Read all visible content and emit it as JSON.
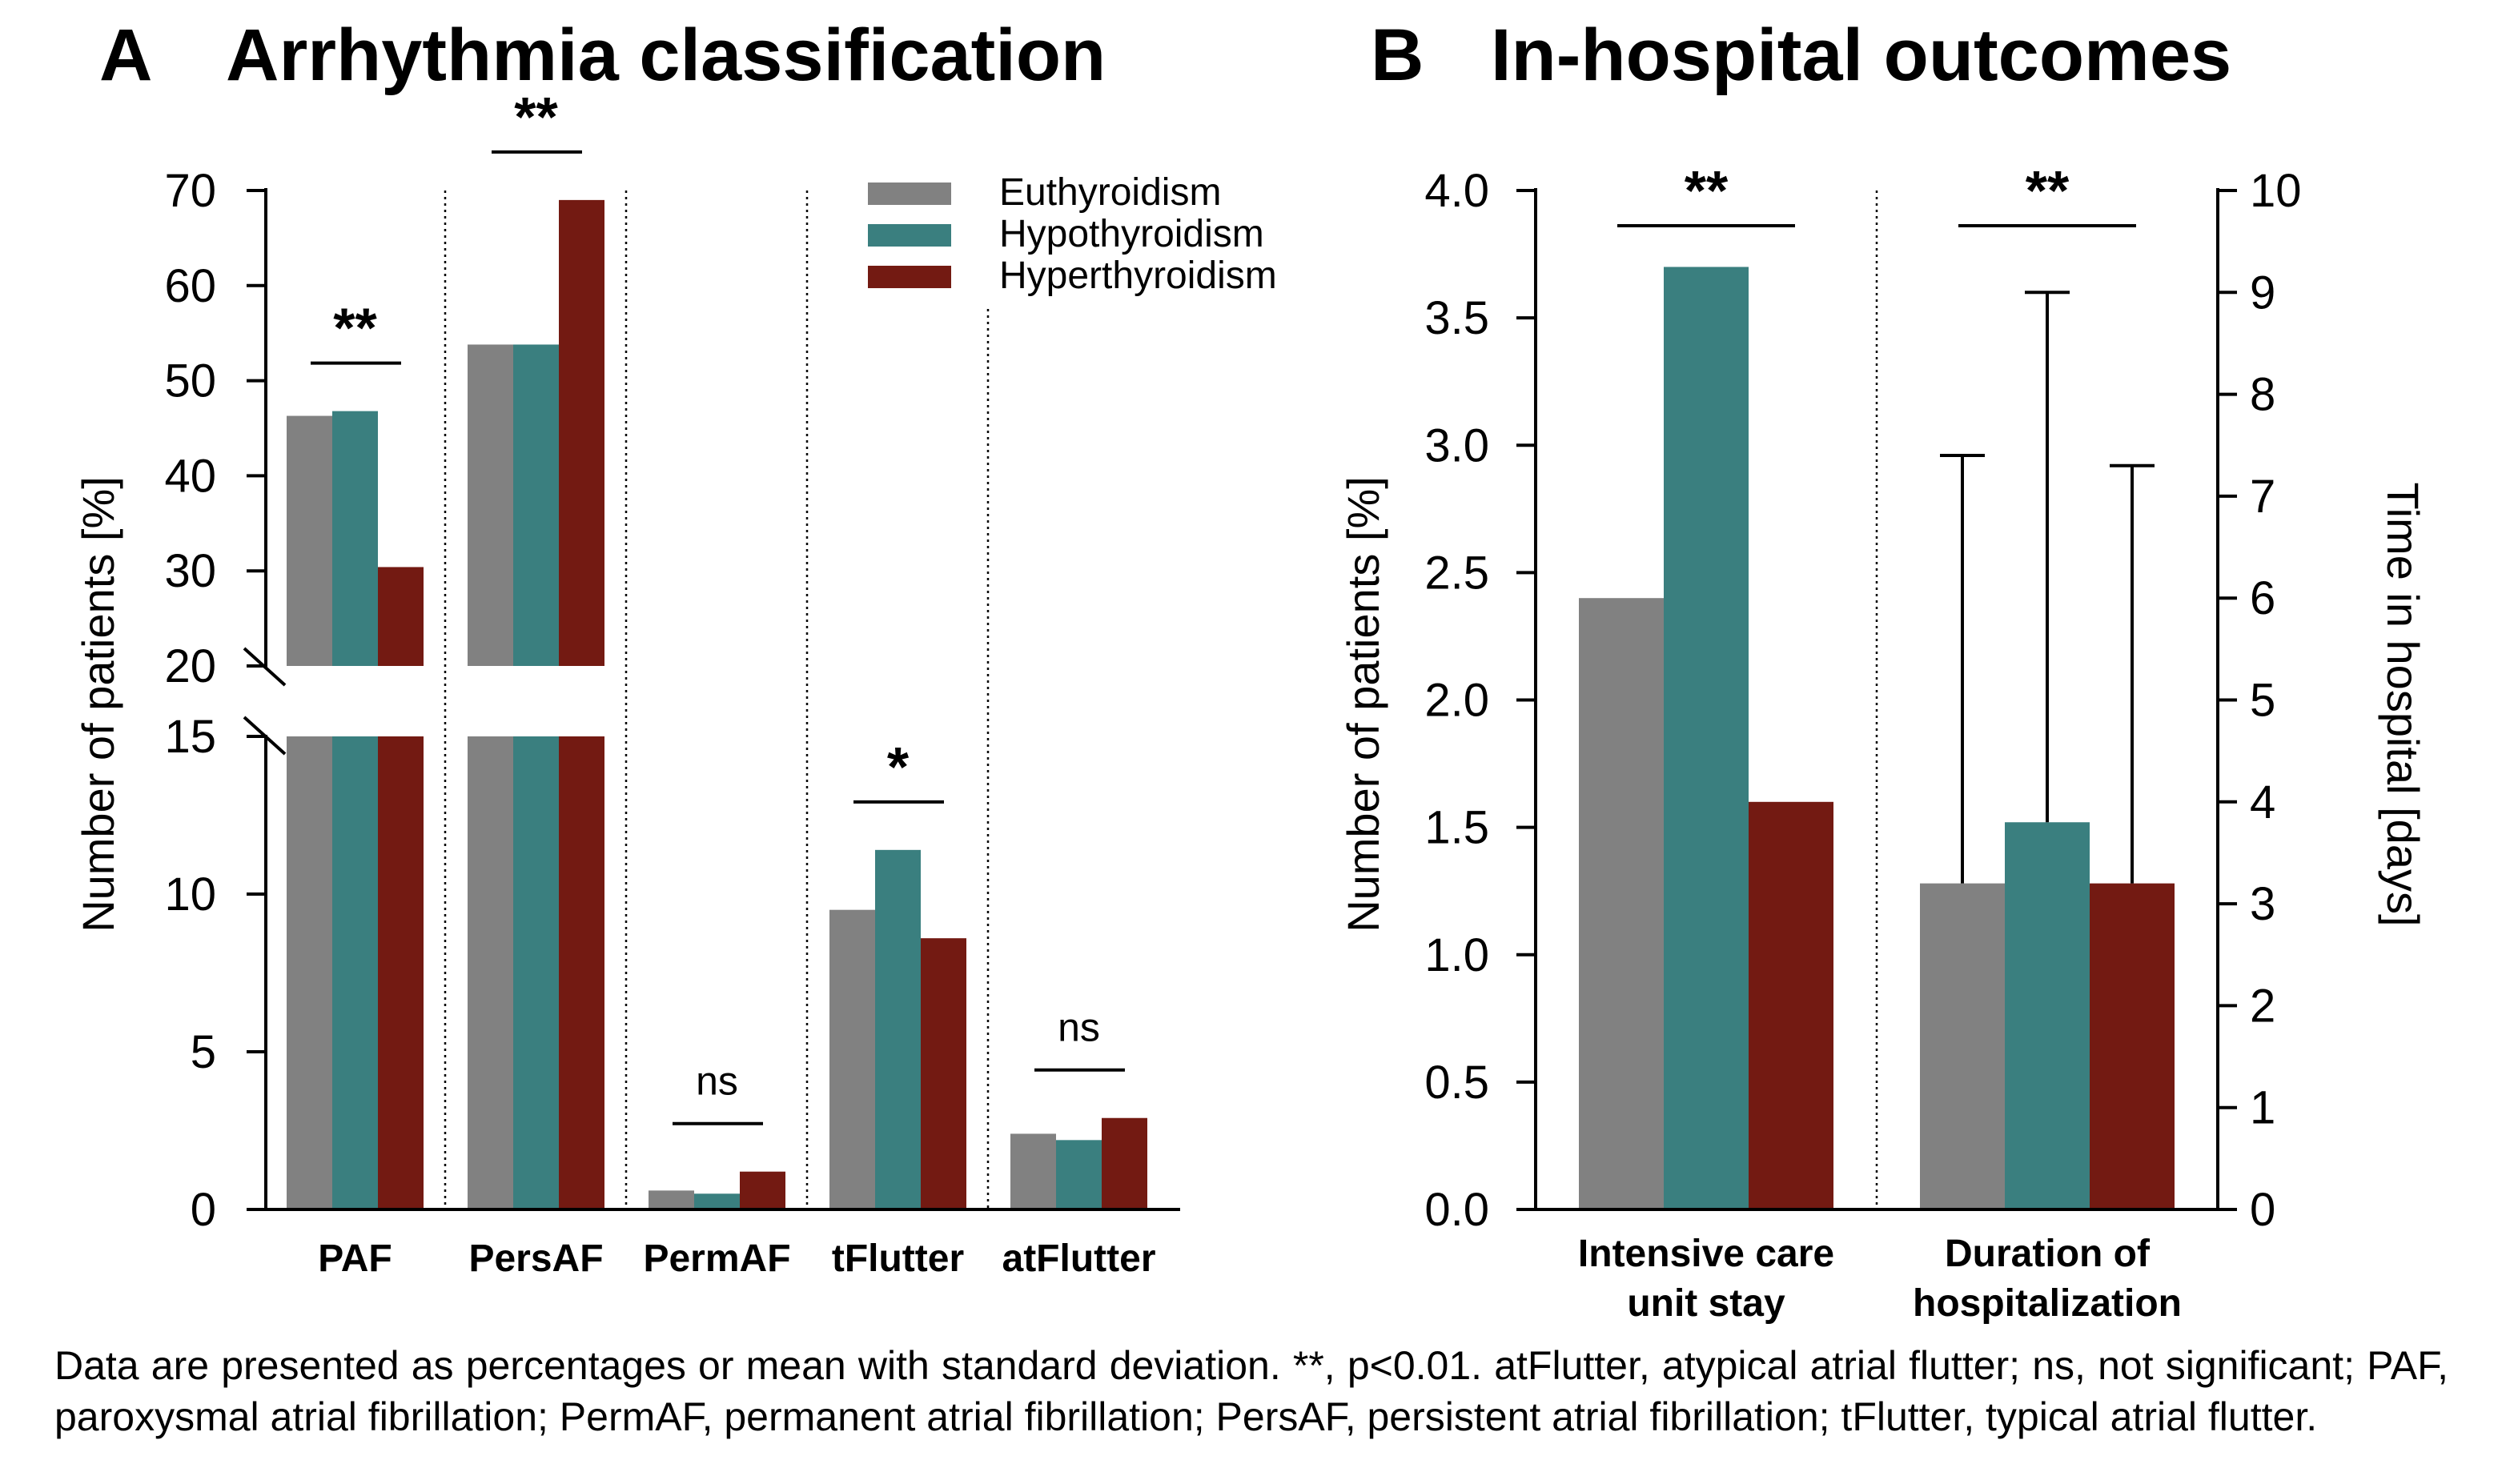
{
  "panel_a": {
    "letter": "A",
    "title": "Arrhythmia classification"
  },
  "panel_b": {
    "letter": "B",
    "title": "In-hospital outcomes"
  },
  "legend": [
    {
      "name": "Euthyroidism",
      "color": "#818181"
    },
    {
      "name": "Hypothyroidism",
      "color": "#3a7f7f"
    },
    {
      "name": "Hyperthyroidism",
      "color": "#731a12"
    }
  ],
  "caption": "Data are presented as percentages or mean with standard deviation. **, p<0.01. atFlutter, atypical atrial flutter; ns, not significant; PAF, paroxysmal atrial fibrillation; PermAF, permanent atrial fibrillation; PersAF, persistent atrial fibrillation; tFlutter, typical atrial flutter.",
  "chart_data": [
    {
      "type": "bar",
      "title": "Arrhythmia classification",
      "ylabel": "Number of patients [%]",
      "xlabel": "",
      "y_axis": "broken",
      "y_lower_range": [
        0,
        15
      ],
      "y_upper_range": [
        20,
        70
      ],
      "y_lower_ticks": [
        0,
        5,
        10,
        15
      ],
      "y_upper_ticks": [
        20,
        30,
        40,
        50,
        60,
        70
      ],
      "categories": [
        "PAF",
        "PersAF",
        "PermAF",
        "tFlutter",
        "atFlutter"
      ],
      "series": [
        {
          "name": "Euthyroidism",
          "values": [
            46.3,
            53.8,
            0.6,
            9.5,
            2.4
          ]
        },
        {
          "name": "Hypothyroidism",
          "values": [
            46.8,
            53.8,
            0.5,
            11.4,
            2.2
          ]
        },
        {
          "name": "Hyperthyroidism",
          "values": [
            30.4,
            69.0,
            1.2,
            8.6,
            2.9
          ]
        }
      ],
      "significance": [
        "**",
        "**",
        "ns",
        "*",
        "ns"
      ],
      "legend_position": "top-right",
      "grid": false
    },
    {
      "type": "bar",
      "title": "In-hospital outcomes",
      "ylabel": "Number of patients [%]",
      "y2label": "Time in hospital [days]",
      "ylim": [
        0,
        4.0
      ],
      "y_ticks": [
        "0.0",
        "0.5",
        "1.0",
        "1.5",
        "2.0",
        "2.5",
        "3.0",
        "3.5",
        "4.0"
      ],
      "y2lim": [
        0,
        10
      ],
      "y2_ticks": [
        "0",
        "1",
        "2",
        "3",
        "4",
        "5",
        "6",
        "7",
        "8",
        "9",
        "10"
      ],
      "categories": [
        "Intensive care unit stay",
        "Duration of hospitalization"
      ],
      "category_lines": [
        [
          "Intensive care",
          "unit stay"
        ],
        [
          "Duration of",
          "hospitalization"
        ]
      ],
      "series": [
        {
          "name": "Euthyroidism",
          "values": [
            2.4,
            3.2
          ],
          "error": [
            null,
            4.2
          ]
        },
        {
          "name": "Hypothyroidism",
          "values": [
            3.7,
            3.8
          ],
          "error": [
            null,
            5.2
          ]
        },
        {
          "name": "Hyperthyroidism",
          "values": [
            1.6,
            3.2
          ],
          "error": [
            null,
            4.1
          ]
        }
      ],
      "axes": [
        "left",
        "right"
      ],
      "significance": [
        "**",
        "**"
      ],
      "grid": false
    }
  ]
}
